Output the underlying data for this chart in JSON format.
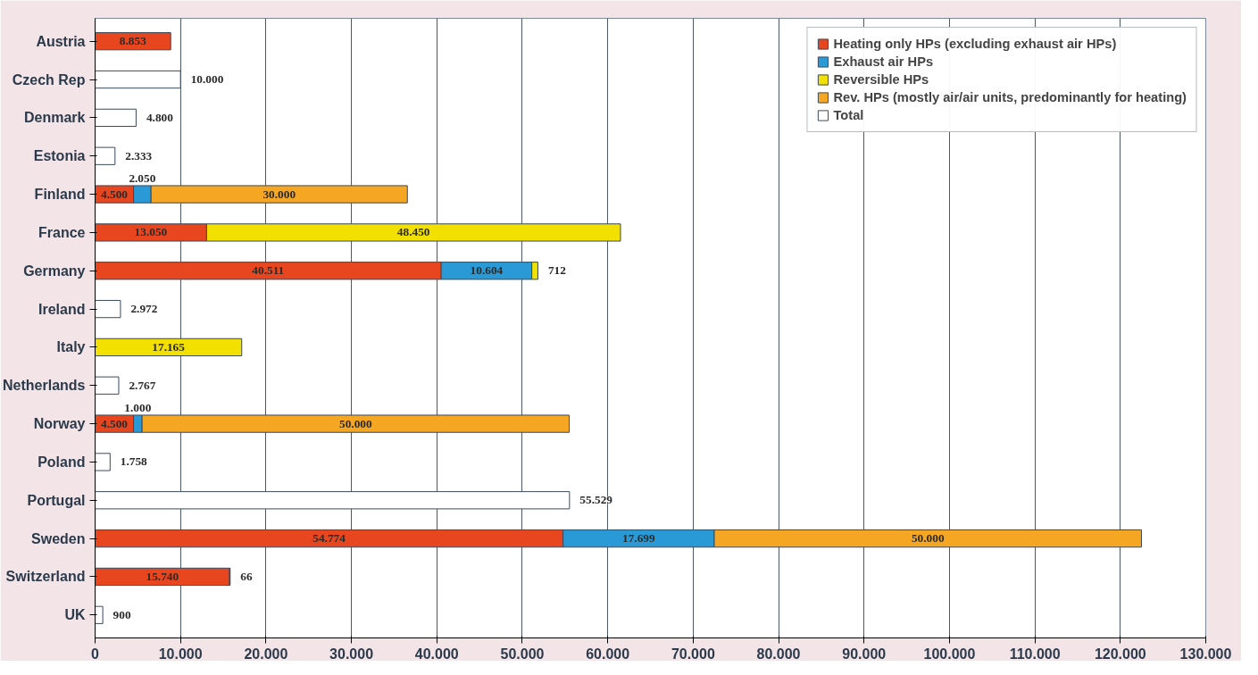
{
  "chart_data": {
    "type": "bar",
    "orientation": "horizontal",
    "stacked": true,
    "categories": [
      "Austria",
      "Czech Rep",
      "Denmark",
      "Estonia",
      "Finland",
      "France",
      "Germany",
      "Ireland",
      "Italy",
      "Netherlands",
      "Norway",
      "Poland",
      "Portugal",
      "Sweden",
      "Switzerland",
      "UK"
    ],
    "series": [
      {
        "name": "Heating only HPs (excluding exhaust air HPs)",
        "color": "#e8461e",
        "values": [
          8853,
          null,
          null,
          null,
          4500,
          13050,
          40511,
          null,
          null,
          null,
          4500,
          null,
          null,
          54774,
          15740,
          null
        ],
        "value_labels": [
          "8.853",
          null,
          null,
          null,
          "4.500",
          "13.050",
          "40.511",
          null,
          null,
          null,
          "4.500",
          null,
          null,
          "54.774",
          "15.740",
          null
        ]
      },
      {
        "name": "Exhaust air HPs",
        "color": "#2a9ad6",
        "values": [
          null,
          null,
          null,
          null,
          2050,
          null,
          10604,
          null,
          null,
          null,
          1000,
          null,
          null,
          17699,
          66,
          null
        ],
        "value_labels": [
          null,
          null,
          null,
          null,
          "2.050",
          null,
          "10.604",
          null,
          null,
          null,
          "1.000",
          null,
          null,
          "17.699",
          "66",
          null
        ]
      },
      {
        "name": "Reversible HPs",
        "color": "#f2e000",
        "values": [
          null,
          null,
          null,
          null,
          null,
          48450,
          712,
          null,
          17165,
          null,
          null,
          null,
          null,
          null,
          null,
          null
        ],
        "value_labels": [
          null,
          null,
          null,
          null,
          null,
          "48.450",
          "712",
          null,
          "17.165",
          null,
          null,
          null,
          null,
          null,
          null,
          null
        ]
      },
      {
        "name": "Rev. HPs (mostly air/air units, predominantly for heating)",
        "color": "#f5a623",
        "values": [
          null,
          null,
          null,
          null,
          30000,
          null,
          null,
          null,
          null,
          null,
          50000,
          null,
          null,
          50000,
          null,
          null
        ],
        "value_labels": [
          null,
          null,
          null,
          null,
          "30.000",
          null,
          null,
          null,
          null,
          null,
          "50.000",
          null,
          null,
          "50.000",
          null,
          null
        ]
      },
      {
        "name": "Total",
        "color": "#ffffff",
        "values": [
          null,
          10000,
          4800,
          2333,
          null,
          null,
          null,
          2972,
          null,
          2767,
          null,
          1758,
          55529,
          null,
          null,
          900
        ],
        "value_labels": [
          null,
          "10.000",
          "4.800",
          "2.333",
          null,
          null,
          null,
          "2.972",
          null,
          "2.767",
          null,
          "1.758",
          "55.529",
          null,
          null,
          "900"
        ]
      }
    ],
    "xlim": [
      0,
      130000
    ],
    "xticks": [
      0,
      {
        "value": 10000,
        "label": "10.000"
      },
      {
        "value": 20000,
        "label": "20.000"
      },
      {
        "value": 30000,
        "label": "30.000"
      },
      {
        "value": 40000,
        "label": "40.000"
      },
      {
        "value": 50000,
        "label": "50.000"
      },
      {
        "value": 60000,
        "label": "60.000"
      },
      {
        "value": 70000,
        "label": "70.000"
      },
      {
        "value": 80000,
        "label": "80.000"
      },
      {
        "value": 90000,
        "label": "90.000"
      },
      {
        "value": 100000,
        "label": "100.000"
      },
      {
        "value": 110000,
        "label": "110.000"
      },
      {
        "value": 120000,
        "label": "120.000"
      },
      {
        "value": 130000,
        "label": "130.000"
      }
    ],
    "grid": "x",
    "legend": "top right"
  }
}
